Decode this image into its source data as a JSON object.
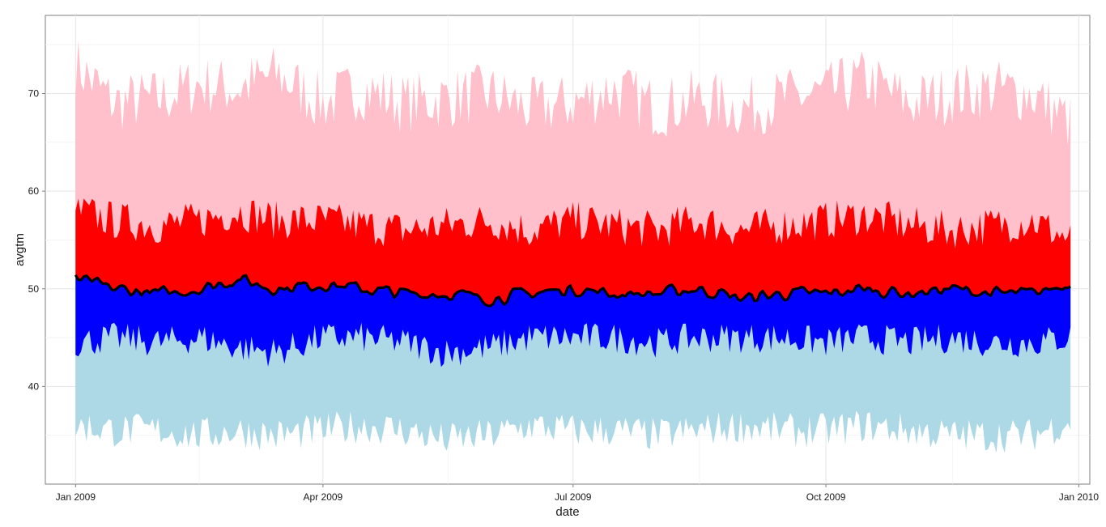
{
  "chart_data": {
    "type": "area",
    "title": "",
    "xlabel": "date",
    "ylabel": "avgtm",
    "x_range": [
      "2008-12-21",
      "2010-01-05"
    ],
    "ylim": [
      30,
      78
    ],
    "x_ticks": [
      {
        "date": "2009-01-01",
        "label": "Jan 2009"
      },
      {
        "date": "2009-04-01",
        "label": "Apr 2009"
      },
      {
        "date": "2009-07-01",
        "label": "Jul 2009"
      },
      {
        "date": "2009-10-01",
        "label": "Oct 2009"
      },
      {
        "date": "2010-01-01",
        "label": "Jan 2010"
      }
    ],
    "y_ticks": [
      40,
      50,
      60,
      70
    ],
    "grid": true,
    "colors": {
      "outer_band": "#ffc0cb",
      "upper_band": "#ff0000",
      "lower_band": "#0000ff",
      "bottom_band": "#add8e6",
      "line": "#000000"
    },
    "x_dates": [
      "2009-01-01",
      "2009-01-15",
      "2009-02-01",
      "2009-02-15",
      "2009-03-01",
      "2009-03-15",
      "2009-04-01",
      "2009-04-15",
      "2009-05-01",
      "2009-05-15",
      "2009-06-01",
      "2009-06-15",
      "2009-07-01",
      "2009-07-15",
      "2009-08-01",
      "2009-08-15",
      "2009-09-01",
      "2009-09-15",
      "2009-10-01",
      "2009-10-15",
      "2009-11-01",
      "2009-11-15",
      "2009-12-01",
      "2009-12-15",
      "2009-12-29"
    ],
    "series": [
      {
        "values": [
          73.0,
          69.0,
          69.5,
          71.0,
          70.5,
          72.0,
          69.0,
          70.5,
          69.0,
          69.5,
          70.0,
          68.5,
          69.0,
          70.5,
          68.5,
          69.5,
          68.5,
          69.5,
          70.0,
          71.5,
          69.0,
          70.0,
          70.5,
          70.0,
          67.0
        ]
      },
      {
        "values": [
          58.0,
          57.0,
          56.5,
          57.0,
          58.0,
          57.0,
          57.0,
          56.5,
          56.0,
          56.5,
          57.0,
          56.0,
          57.0,
          56.5,
          56.0,
          57.0,
          56.0,
          56.5,
          57.0,
          57.5,
          56.5,
          56.0,
          56.5,
          57.0,
          55.0
        ]
      },
      {
        "values": [
          51.0,
          50.0,
          49.5,
          50.0,
          51.0,
          50.0,
          50.5,
          50.0,
          49.5,
          49.5,
          49.0,
          49.5,
          50.0,
          49.5,
          49.5,
          50.0,
          49.0,
          49.5,
          49.5,
          50.0,
          49.5,
          50.0,
          49.5,
          49.5,
          50.5
        ]
      },
      {
        "values": [
          44.5,
          45.0,
          44.5,
          45.0,
          44.0,
          43.5,
          45.0,
          45.0,
          44.5,
          43.5,
          44.0,
          45.0,
          45.0,
          45.0,
          44.5,
          45.0,
          45.0,
          45.0,
          44.5,
          45.0,
          44.5,
          45.0,
          44.5,
          44.5,
          45.0
        ]
      },
      {
        "values": [
          36.0,
          35.5,
          35.5,
          35.0,
          35.5,
          35.0,
          35.5,
          36.0,
          35.5,
          34.5,
          35.0,
          36.0,
          35.5,
          35.5,
          35.0,
          35.5,
          36.0,
          35.5,
          35.5,
          36.0,
          35.5,
          35.0,
          35.0,
          35.0,
          36.5
        ]
      }
    ]
  }
}
